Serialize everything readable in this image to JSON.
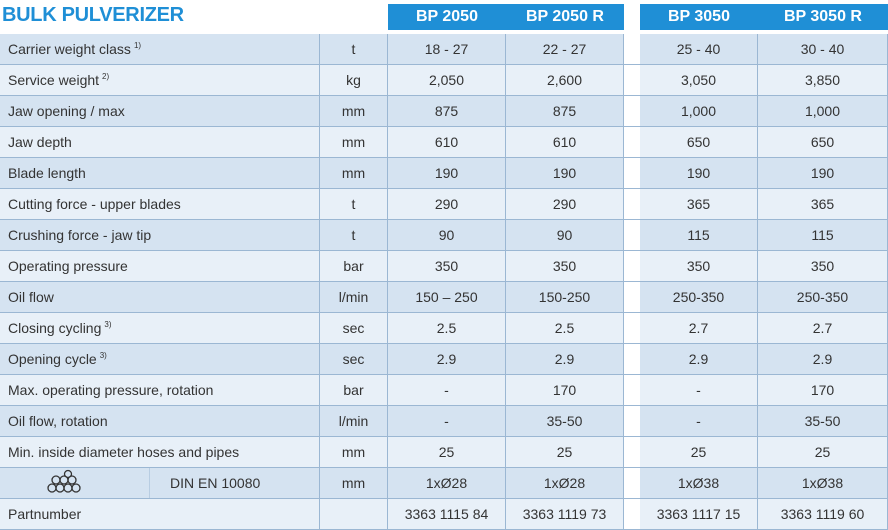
{
  "title": "BULK PULVERIZER",
  "columns": [
    "BP 2050",
    "BP 2050 R",
    "BP 3050",
    "BP 3050 R"
  ],
  "rows": [
    {
      "label": "Carrier weight class",
      "note": "1)",
      "unit": "t",
      "values": [
        "18 - 27",
        "22 - 27",
        "25 - 40",
        "30 - 40"
      ]
    },
    {
      "label": "Service weight",
      "note": "2)",
      "unit": "kg",
      "values": [
        "2,050",
        "2,600",
        "3,050",
        "3,850"
      ]
    },
    {
      "label": "Jaw opening / max",
      "unit": "mm",
      "values": [
        "875",
        "875",
        "1,000",
        "1,000"
      ]
    },
    {
      "label": "Jaw depth",
      "unit": "mm",
      "values": [
        "610",
        "610",
        "650",
        "650"
      ]
    },
    {
      "label": "Blade length",
      "unit": "mm",
      "values": [
        "190",
        "190",
        "190",
        "190"
      ]
    },
    {
      "label": "Cutting force - upper blades",
      "unit": "t",
      "values": [
        "290",
        "290",
        "365",
        "365"
      ]
    },
    {
      "label": "Crushing force - jaw tip",
      "unit": "t",
      "values": [
        "90",
        "90",
        "115",
        "115"
      ]
    },
    {
      "label": "Operating pressure",
      "unit": "bar",
      "values": [
        "350",
        "350",
        "350",
        "350"
      ]
    },
    {
      "label": "Oil flow",
      "unit": "l/min",
      "values": [
        "150 – 250",
        "150-250",
        "250-350",
        "250-350"
      ]
    },
    {
      "label": "Closing cycling",
      "note": "3)",
      "unit": "sec",
      "values": [
        "2.5",
        "2.5",
        "2.7",
        "2.7"
      ]
    },
    {
      "label": "Opening cycle",
      "note": "3)",
      "unit": "sec",
      "values": [
        "2.9",
        "2.9",
        "2.9",
        "2.9"
      ]
    },
    {
      "label": "Max. operating pressure, rotation",
      "unit": "bar",
      "values": [
        "-",
        "170",
        "-",
        "170"
      ]
    },
    {
      "label": "Oil flow, rotation",
      "unit": "l/min",
      "values": [
        "-",
        "35-50",
        "-",
        "35-50"
      ]
    },
    {
      "label": "Min. inside diameter hoses and pipes",
      "unit": "mm",
      "values": [
        "25",
        "25",
        "25",
        "25"
      ]
    },
    {
      "label": "DIN EN 10080",
      "icon": true,
      "unit": "mm",
      "values": [
        "1xØ28",
        "1xØ28",
        "1xØ38",
        "1xØ38"
      ]
    },
    {
      "label": "Partnumber",
      "values": [
        "3363 1115 84",
        "3363 1119 73",
        "3363 1117 15",
        "3363 1119 60"
      ]
    }
  ]
}
